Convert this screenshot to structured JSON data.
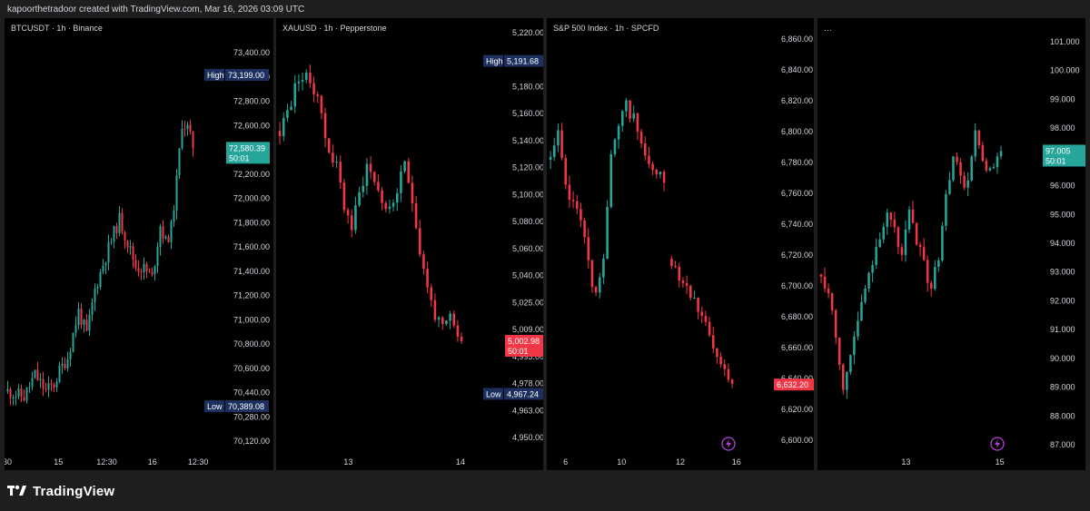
{
  "header": {
    "credit": "kapoorthetradoor created with TradingView.com, Mar 16, 2026 03:09 UTC"
  },
  "footer": {
    "brand": "TradingView"
  },
  "colors": {
    "up": "#26a69a",
    "down": "#f23645",
    "background": "#000000",
    "frame": "#1e1e1e",
    "hilo_badge": "#1c2f5e",
    "text": "#d1d4dc"
  },
  "chart_data": [
    {
      "type": "candlestick",
      "title": "BTCUSDT · 1h · Binance",
      "ylim": [
        70020,
        73530
      ],
      "y_ticks": [
        "73,400.00",
        "73,000.00",
        "72,800.00",
        "72,600.00",
        "72,400.00",
        "72,200.00",
        "72,000.00",
        "71,800.00",
        "71,600.00",
        "71,400.00",
        "71,200.00",
        "71,000.00",
        "70,800.00",
        "70,600.00",
        "70,440.00",
        "70,280.00",
        "70,120.00"
      ],
      "x_ticks": [
        "30",
        "15",
        "12:30",
        "16",
        "12:30"
      ],
      "x_tick_pos": [
        0.01,
        0.2,
        0.38,
        0.55,
        0.72
      ],
      "high": {
        "label": "High",
        "value": 73199.0,
        "text": "73,199.00"
      },
      "low": {
        "label": "Low",
        "value": 70389.08,
        "text": "70,389.08"
      },
      "last": {
        "value": 72580.39,
        "text": "72,580.39",
        "countdown": "50:01",
        "direction": "up"
      },
      "anchors": [
        [
          0,
          70520
        ],
        [
          6,
          70470
        ],
        [
          10,
          70660
        ],
        [
          14,
          70520
        ],
        [
          17,
          70580
        ],
        [
          19,
          70690
        ],
        [
          22,
          70810
        ],
        [
          26,
          71200
        ],
        [
          29,
          71000
        ],
        [
          32,
          71380
        ],
        [
          35,
          71600
        ],
        [
          38,
          71800
        ],
        [
          41,
          71980
        ],
        [
          44,
          71780
        ],
        [
          47,
          71580
        ],
        [
          50,
          71560
        ],
        [
          53,
          71480
        ],
        [
          56,
          71930
        ],
        [
          58,
          71780
        ],
        [
          60,
          71900
        ],
        [
          62,
          72300
        ],
        [
          64,
          72800
        ],
        [
          66,
          72750
        ],
        [
          68,
          72580
        ]
      ],
      "seed": 11
    },
    {
      "type": "candlestick",
      "title": "XAUUSD · 1h · Pepperstone",
      "ylim": [
        4932,
        5222
      ],
      "y_ticks": [
        "5,220.00",
        "5,200.00",
        "5,180.00",
        "5,160.00",
        "5,140.00",
        "5,120.00",
        "5,100.00",
        "5,080.00",
        "5,060.00",
        "5,040.00",
        "5,025.00",
        "5,009.00",
        "4,993.00",
        "4,978.00",
        "4,963.00",
        "4,950.00"
      ],
      "x_ticks": [
        "13",
        "14"
      ],
      "x_tick_pos": [
        0.27,
        0.69
      ],
      "high": {
        "label": "High",
        "value": 5191.68,
        "text": "5,191.68"
      },
      "low": {
        "label": "Low",
        "value": 4967.24,
        "text": "4,967.24"
      },
      "last": {
        "value": 5002.98,
        "text": "5,002.98",
        "countdown": "50:01",
        "direction": "down"
      },
      "anchors": [
        [
          0,
          5145
        ],
        [
          3,
          5165
        ],
        [
          5,
          5182
        ],
        [
          8,
          5178
        ],
        [
          10,
          5170
        ],
        [
          12,
          5140
        ],
        [
          15,
          5120
        ],
        [
          17,
          5095
        ],
        [
          19,
          5080
        ],
        [
          21,
          5102
        ],
        [
          23,
          5122
        ],
        [
          25,
          5112
        ],
        [
          27,
          5098
        ],
        [
          29,
          5090
        ],
        [
          31,
          5105
        ],
        [
          33,
          5120
        ],
        [
          35,
          5100
        ],
        [
          37,
          5065
        ],
        [
          39,
          5040
        ],
        [
          41,
          5020
        ],
        [
          43,
          5010
        ],
        [
          45,
          5018
        ],
        [
          47,
          5008
        ],
        [
          48,
          5003
        ]
      ],
      "seed": 23
    },
    {
      "type": "candlestick",
      "title": "S&P 500 Index · 1h · SPCFD",
      "ylim": [
        6590,
        6870
      ],
      "y_ticks": [
        "6,860.00",
        "6,840.00",
        "6,820.00",
        "6,800.00",
        "6,780.00",
        "6,760.00",
        "6,740.00",
        "6,720.00",
        "6,700.00",
        "6,680.00",
        "6,660.00",
        "6,640.00",
        "6,620.00",
        "6,600.00"
      ],
      "x_ticks": [
        "6",
        "10",
        "12",
        "16"
      ],
      "x_tick_pos": [
        0.07,
        0.28,
        0.5,
        0.71
      ],
      "last": {
        "value": 6632.2,
        "text": "6,632.20",
        "direction": "down"
      },
      "sessions": [
        {
          "start": 0,
          "anchors": [
            [
              0,
              6780
            ],
            [
              2,
              6795
            ],
            [
              4,
              6760
            ],
            [
              6,
              6750
            ],
            [
              8,
              6745
            ],
            [
              10,
              6710
            ],
            [
              12,
              6690
            ],
            [
              14,
              6720
            ],
            [
              16,
              6780
            ],
            [
              18,
              6800
            ],
            [
              20,
              6815
            ],
            [
              22,
              6808
            ],
            [
              24,
              6790
            ],
            [
              26,
              6775
            ],
            [
              28,
              6770
            ],
            [
              30,
              6765
            ]
          ]
        },
        {
          "start": 32,
          "anchors": [
            [
              32,
              6715
            ],
            [
              34,
              6705
            ],
            [
              36,
              6698
            ],
            [
              38,
              6690
            ],
            [
              40,
              6678
            ],
            [
              42,
              6662
            ],
            [
              44,
              6648
            ],
            [
              46,
              6640
            ],
            [
              48,
              6633
            ]
          ]
        }
      ],
      "seed": 37
    },
    {
      "type": "candlestick",
      "title": "…",
      "ylim": [
        86900,
        101200
      ],
      "y_ticks": [
        "101.000",
        "100.000",
        "99.000",
        "98.000",
        "97.000",
        "96.000",
        "95.000",
        "94.000",
        "93.000",
        "92.000",
        "91.000",
        "90.000",
        "89.000",
        "88.000",
        "87.000"
      ],
      "x_ticks": [
        "13",
        "15"
      ],
      "x_tick_pos": [
        0.33,
        0.68
      ],
      "last": {
        "value": 97005,
        "text": "97.005",
        "countdown": "50:01",
        "direction": "up"
      },
      "anchors": [
        [
          0,
          92900
        ],
        [
          2,
          92300
        ],
        [
          4,
          91000
        ],
        [
          6,
          89000
        ],
        [
          8,
          90300
        ],
        [
          10,
          91300
        ],
        [
          12,
          92300
        ],
        [
          14,
          93400
        ],
        [
          16,
          94300
        ],
        [
          18,
          94800
        ],
        [
          20,
          94300
        ],
        [
          22,
          93600
        ],
        [
          24,
          94900
        ],
        [
          26,
          93900
        ],
        [
          28,
          93300
        ],
        [
          30,
          92300
        ],
        [
          32,
          93600
        ],
        [
          34,
          95400
        ],
        [
          36,
          96800
        ],
        [
          38,
          96200
        ],
        [
          40,
          95800
        ],
        [
          42,
          97800
        ],
        [
          44,
          96500
        ],
        [
          46,
          96200
        ],
        [
          48,
          96600
        ],
        [
          49,
          97005
        ]
      ],
      "seed": 53
    }
  ]
}
